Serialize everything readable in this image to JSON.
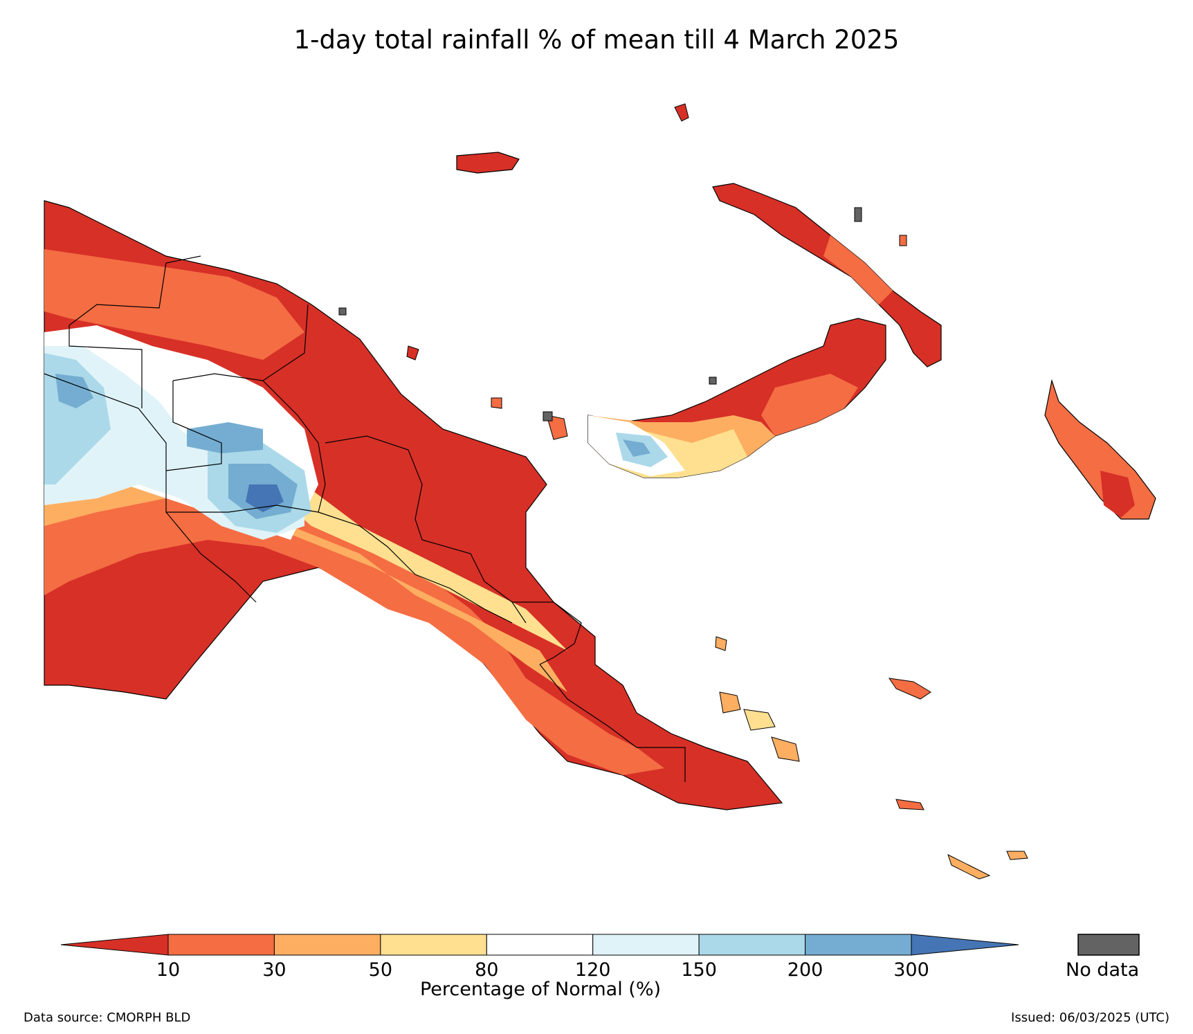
{
  "map": {
    "title": "1-day total rainfall % of mean till 4 March 2025"
  },
  "colorbar": {
    "axis_label": "Percentage of Normal (%)",
    "ticks": [
      "10",
      "30",
      "50",
      "80",
      "120",
      "150",
      "200",
      "300"
    ],
    "colors": [
      "#d73027",
      "#f46d43",
      "#fdae61",
      "#fee090",
      "#ffffff",
      "#e0f3f8",
      "#abd9e9",
      "#74add1",
      "#4575b4"
    ],
    "no_data_label": "No data",
    "no_data_color": "#636363"
  },
  "footer": {
    "source": "Data source: CMORPH BLD",
    "issued": "Issued: 06/03/2025 (UTC)"
  }
}
